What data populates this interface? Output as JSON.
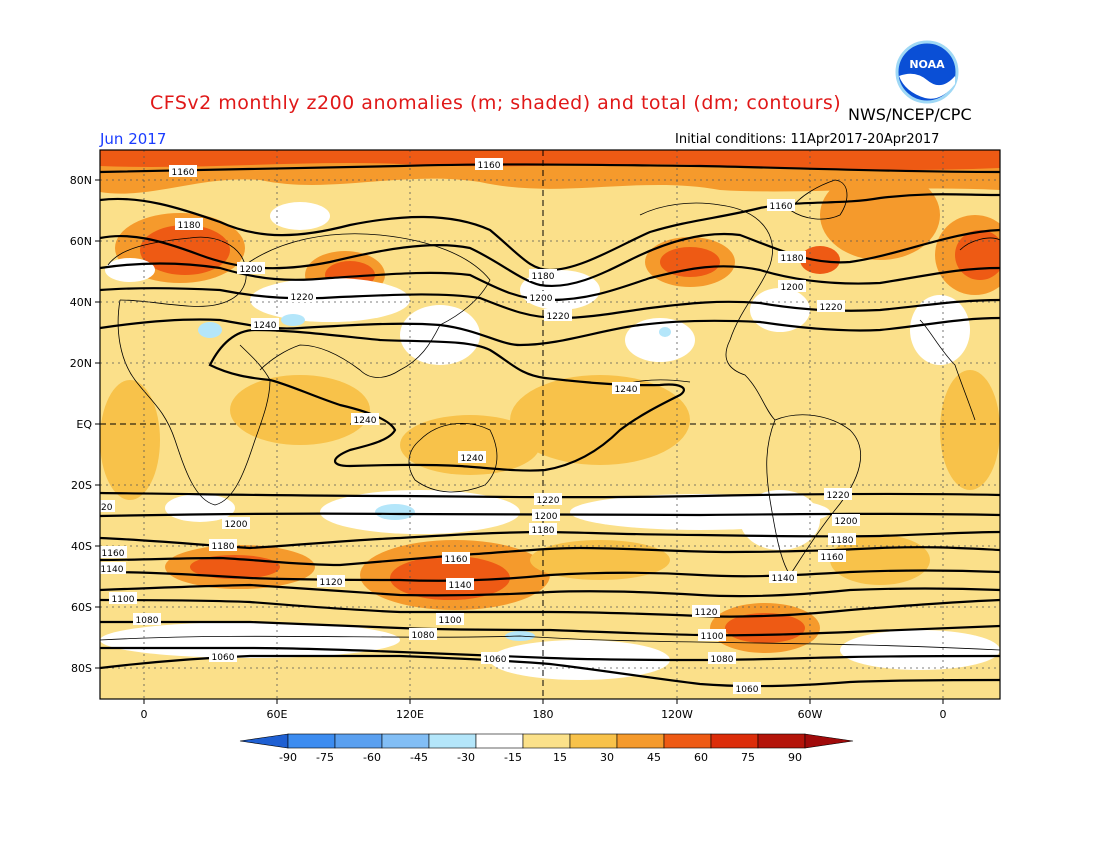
{
  "header": {
    "title": "CFSv2 monthly z200 anomalies (m; shaded) and total (dm; contours)",
    "agency": "NWS/NCEP/CPC",
    "period": "Jun 2017",
    "initial_conditions": "Initial conditions: 11Apr2017-20Apr2017"
  },
  "logo": {
    "text": "NOAA",
    "icon": "noaa-logo"
  },
  "map": {
    "lat_labels": [
      "80N",
      "60N",
      "40N",
      "20N",
      "EQ",
      "20S",
      "40S",
      "60S",
      "80S"
    ],
    "lon_labels": [
      "0",
      "60E",
      "120E",
      "180",
      "120W",
      "60W",
      "0"
    ],
    "contour_levels": [
      "1060",
      "1080",
      "1100",
      "1120",
      "1140",
      "1160",
      "1180",
      "1200",
      "1220",
      "1240"
    ],
    "contour_labels": [
      {
        "text": "1160"
      },
      {
        "text": "1160"
      },
      {
        "text": "1160"
      },
      {
        "text": "1180"
      },
      {
        "text": "1180"
      },
      {
        "text": "1180"
      },
      {
        "text": "1200"
      },
      {
        "text": "1200"
      },
      {
        "text": "1200"
      },
      {
        "text": "1220"
      },
      {
        "text": "1220"
      },
      {
        "text": "1220"
      },
      {
        "text": "1240"
      },
      {
        "text": "1240"
      },
      {
        "text": "1240"
      },
      {
        "text": "1240"
      },
      {
        "text": "1220"
      },
      {
        "text": "1220"
      },
      {
        "text": "1220"
      },
      {
        "text": "1200"
      },
      {
        "text": "1200"
      },
      {
        "text": "1200"
      },
      {
        "text": "1180"
      },
      {
        "text": "1180"
      },
      {
        "text": "1180"
      },
      {
        "text": "1160"
      },
      {
        "text": "1160"
      },
      {
        "text": "1160"
      },
      {
        "text": "1140"
      },
      {
        "text": "1140"
      },
      {
        "text": "1140"
      },
      {
        "text": "1120"
      },
      {
        "text": "1120"
      },
      {
        "text": "1100"
      },
      {
        "text": "1100"
      },
      {
        "text": "1100"
      },
      {
        "text": "1080"
      },
      {
        "text": "1080"
      },
      {
        "text": "1080"
      },
      {
        "text": "1060"
      },
      {
        "text": "1060"
      },
      {
        "text": "1060"
      }
    ]
  },
  "colorbar": {
    "labels": [
      "-90",
      "-75",
      "-60",
      "-45",
      "-30",
      "-15",
      "15",
      "30",
      "45",
      "60",
      "75",
      "90"
    ],
    "colors": [
      "#1e6ee6",
      "#3c8cf0",
      "#5aa0f0",
      "#82bef5",
      "#b4e6fa",
      "#ffffff",
      "#fbe18a",
      "#f8c24a",
      "#f59a2c",
      "#ee5a14",
      "#dc2d0a",
      "#b4140a"
    ],
    "under_color": "#1e5fd2",
    "over_color": "#a00a0a"
  }
}
